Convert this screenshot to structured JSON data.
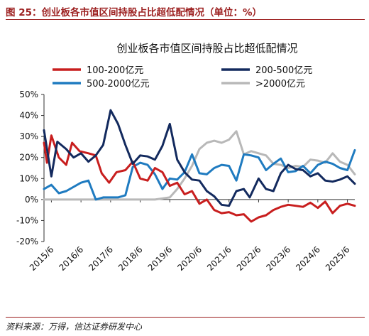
{
  "figure_title": "图 25：创业板各市值区间持股占比超低配情况（单位：%）",
  "source_note": "资料来源：万得，信达证券研发中心",
  "chart_data": {
    "type": "line",
    "title": "创业板各市值区间持股占比超低配情况",
    "ylabel": "",
    "xlabel": "",
    "ylim": [
      -20,
      50
    ],
    "yticks": [
      -20,
      -10,
      0,
      10,
      20,
      30,
      40,
      50
    ],
    "ytick_labels": [
      "-20%",
      "-10%",
      "0%",
      "10%",
      "20%",
      "30%",
      "40%",
      "50%"
    ],
    "x_range": [
      2015.25,
      2025.75
    ],
    "xticks": [
      {
        "x": 2015.5,
        "label": "2015/6"
      },
      {
        "x": 2016.5,
        "label": "2016/6"
      },
      {
        "x": 2017.5,
        "label": "2017/6"
      },
      {
        "x": 2018.5,
        "label": "2018/6"
      },
      {
        "x": 2019.5,
        "label": "2019/6"
      },
      {
        "x": 2020.5,
        "label": "2020/6"
      },
      {
        "x": 2021.5,
        "label": "2021/6"
      },
      {
        "x": 2022.5,
        "label": "2022/6"
      },
      {
        "x": 2023.5,
        "label": "2023/6"
      },
      {
        "x": 2024.5,
        "label": "2024/6"
      },
      {
        "x": 2025.5,
        "label": "2025/6"
      }
    ],
    "grid": false,
    "legend": "top",
    "series": [
      {
        "name": "100-200亿元",
        "color": "#c81e1e",
        "points": [
          [
            2015.25,
            27.0
          ],
          [
            2015.35,
            17.5
          ],
          [
            2015.5,
            30.5
          ],
          [
            2015.75,
            20.0
          ],
          [
            2016.0,
            16.5
          ],
          [
            2016.2,
            27.0
          ],
          [
            2016.45,
            23.0
          ],
          [
            2016.75,
            22.0
          ],
          [
            2017.0,
            21.0
          ],
          [
            2017.2,
            12.5
          ],
          [
            2017.45,
            8.0
          ],
          [
            2017.7,
            13.0
          ],
          [
            2018.0,
            14.0
          ],
          [
            2018.25,
            18.0
          ],
          [
            2018.5,
            10.0
          ],
          [
            2018.75,
            9.0
          ],
          [
            2019.0,
            15.0
          ],
          [
            2019.25,
            13.0
          ],
          [
            2019.5,
            6.5
          ],
          [
            2019.75,
            8.0
          ],
          [
            2020.0,
            2.5
          ],
          [
            2020.25,
            4.0
          ],
          [
            2020.5,
            -2.0
          ],
          [
            2020.75,
            0.0
          ],
          [
            2021.0,
            -5.0
          ],
          [
            2021.25,
            -6.5
          ],
          [
            2021.5,
            -6.0
          ],
          [
            2021.75,
            -7.5
          ],
          [
            2022.0,
            -7.0
          ],
          [
            2022.25,
            -10.5
          ],
          [
            2022.5,
            -8.5
          ],
          [
            2022.75,
            -7.5
          ],
          [
            2023.0,
            -5.0
          ],
          [
            2023.25,
            -3.5
          ],
          [
            2023.5,
            -2.5
          ],
          [
            2023.75,
            -3.0
          ],
          [
            2024.0,
            -3.5
          ],
          [
            2024.25,
            -1.5
          ],
          [
            2024.5,
            -4.0
          ],
          [
            2024.75,
            -1.0
          ],
          [
            2025.0,
            -6.5
          ],
          [
            2025.25,
            -3.0
          ],
          [
            2025.5,
            -2.0
          ],
          [
            2025.75,
            -3.0
          ]
        ]
      },
      {
        "name": "200-500亿元",
        "color": "#132a5e",
        "points": [
          [
            2015.25,
            33.0
          ],
          [
            2015.5,
            11.0
          ],
          [
            2015.7,
            27.5
          ],
          [
            2016.0,
            24.0
          ],
          [
            2016.25,
            20.0
          ],
          [
            2016.5,
            22.0
          ],
          [
            2016.75,
            18.0
          ],
          [
            2017.0,
            21.0
          ],
          [
            2017.25,
            26.0
          ],
          [
            2017.5,
            42.5
          ],
          [
            2017.75,
            36.0
          ],
          [
            2018.0,
            26.0
          ],
          [
            2018.25,
            17.0
          ],
          [
            2018.5,
            21.0
          ],
          [
            2018.75,
            20.5
          ],
          [
            2019.0,
            19.0
          ],
          [
            2019.25,
            25.5
          ],
          [
            2019.5,
            36.0
          ],
          [
            2019.75,
            19.0
          ],
          [
            2020.0,
            13.0
          ],
          [
            2020.25,
            9.5
          ],
          [
            2020.5,
            9.0
          ],
          [
            2020.75,
            4.0
          ],
          [
            2021.0,
            1.5
          ],
          [
            2021.25,
            -2.5
          ],
          [
            2021.5,
            -3.0
          ],
          [
            2021.75,
            4.0
          ],
          [
            2022.0,
            5.0
          ],
          [
            2022.2,
            1.0
          ],
          [
            2022.5,
            10.0
          ],
          [
            2022.75,
            5.0
          ],
          [
            2023.0,
            4.0
          ],
          [
            2023.25,
            12.5
          ],
          [
            2023.5,
            16.5
          ],
          [
            2023.75,
            14.5
          ],
          [
            2024.0,
            14.0
          ],
          [
            2024.25,
            11.0
          ],
          [
            2024.5,
            12.5
          ],
          [
            2024.75,
            9.0
          ],
          [
            2025.0,
            8.5
          ],
          [
            2025.25,
            9.5
          ],
          [
            2025.5,
            11.0
          ],
          [
            2025.75,
            7.5
          ]
        ]
      },
      {
        "name": "500-2000亿元",
        "color": "#1f7bc0",
        "points": [
          [
            2015.25,
            5.0
          ],
          [
            2015.5,
            7.0
          ],
          [
            2015.75,
            3.0
          ],
          [
            2016.0,
            4.0
          ],
          [
            2016.5,
            8.0
          ],
          [
            2016.75,
            9.0
          ],
          [
            2017.0,
            0.0
          ],
          [
            2017.25,
            1.0
          ],
          [
            2017.5,
            1.0
          ],
          [
            2017.75,
            1.0
          ],
          [
            2018.0,
            2.0
          ],
          [
            2018.25,
            15.5
          ],
          [
            2018.5,
            17.5
          ],
          [
            2018.75,
            16.5
          ],
          [
            2019.0,
            12.0
          ],
          [
            2019.25,
            5.0
          ],
          [
            2019.5,
            10.0
          ],
          [
            2019.75,
            9.5
          ],
          [
            2020.0,
            13.0
          ],
          [
            2020.25,
            21.5
          ],
          [
            2020.5,
            12.5
          ],
          [
            2020.75,
            12.0
          ],
          [
            2021.0,
            15.0
          ],
          [
            2021.25,
            16.5
          ],
          [
            2021.5,
            16.0
          ],
          [
            2021.75,
            9.0
          ],
          [
            2022.0,
            21.5
          ],
          [
            2022.25,
            21.0
          ],
          [
            2022.5,
            20.0
          ],
          [
            2022.75,
            14.0
          ],
          [
            2023.0,
            17.0
          ],
          [
            2023.25,
            19.5
          ],
          [
            2023.5,
            13.0
          ],
          [
            2023.75,
            13.5
          ],
          [
            2024.0,
            16.0
          ],
          [
            2024.25,
            12.5
          ],
          [
            2024.5,
            16.5
          ],
          [
            2024.75,
            18.0
          ],
          [
            2025.0,
            17.0
          ],
          [
            2025.25,
            15.0
          ],
          [
            2025.5,
            14.0
          ],
          [
            2025.75,
            23.5
          ]
        ]
      },
      {
        "name": ">2000亿元",
        "color": "#b8b8b8",
        "points": [
          [
            2015.25,
            0.0
          ],
          [
            2016.0,
            0.0
          ],
          [
            2016.75,
            0.0
          ],
          [
            2017.5,
            0.0
          ],
          [
            2018.25,
            0.0
          ],
          [
            2019.0,
            0.0
          ],
          [
            2019.5,
            1.0
          ],
          [
            2019.75,
            5.0
          ],
          [
            2020.0,
            10.0
          ],
          [
            2020.25,
            16.0
          ],
          [
            2020.5,
            24.0
          ],
          [
            2020.75,
            27.0
          ],
          [
            2021.0,
            28.0
          ],
          [
            2021.25,
            27.0
          ],
          [
            2021.5,
            28.5
          ],
          [
            2021.75,
            32.5
          ],
          [
            2022.0,
            21.5
          ],
          [
            2022.25,
            23.0
          ],
          [
            2022.5,
            22.0
          ],
          [
            2022.75,
            21.0
          ],
          [
            2023.0,
            17.0
          ],
          [
            2023.25,
            16.5
          ],
          [
            2023.5,
            15.0
          ],
          [
            2023.75,
            16.0
          ],
          [
            2024.0,
            15.5
          ],
          [
            2024.25,
            19.0
          ],
          [
            2024.5,
            18.5
          ],
          [
            2024.75,
            17.5
          ],
          [
            2025.0,
            22.0
          ],
          [
            2025.25,
            18.0
          ],
          [
            2025.5,
            16.5
          ],
          [
            2025.75,
            12.0
          ]
        ]
      }
    ]
  }
}
